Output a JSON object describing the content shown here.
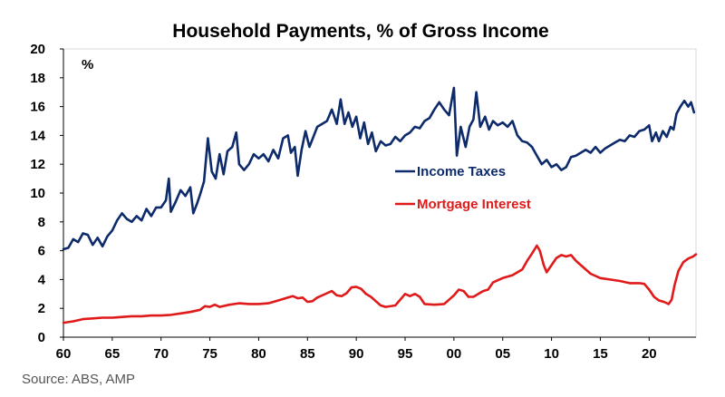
{
  "chart_data": {
    "type": "line",
    "title": "Household Payments, % of Gross Income",
    "unit_label": "%",
    "xlabel": "",
    "ylabel": "",
    "xlim": [
      1960,
      2024.8
    ],
    "ylim": [
      0,
      20
    ],
    "y_ticks": [
      0,
      2,
      4,
      6,
      8,
      10,
      12,
      14,
      16,
      18,
      20
    ],
    "x_ticks": [
      {
        "value": 1960,
        "label": "60"
      },
      {
        "value": 1965,
        "label": "65"
      },
      {
        "value": 1970,
        "label": "70"
      },
      {
        "value": 1975,
        "label": "75"
      },
      {
        "value": 1980,
        "label": "80"
      },
      {
        "value": 1985,
        "label": "85"
      },
      {
        "value": 1990,
        "label": "90"
      },
      {
        "value": 1995,
        "label": "95"
      },
      {
        "value": 2000,
        "label": "00"
      },
      {
        "value": 2005,
        "label": "05"
      },
      {
        "value": 2010,
        "label": "10"
      },
      {
        "value": 2015,
        "label": "15"
      },
      {
        "value": 2020,
        "label": "20"
      }
    ],
    "grid": false,
    "legend_position": "center-right",
    "series": [
      {
        "name": "Income Taxes",
        "color": "#0d2a6b",
        "points": [
          [
            1960.0,
            6.1
          ],
          [
            1960.5,
            6.2
          ],
          [
            1961.0,
            6.8
          ],
          [
            1961.5,
            6.6
          ],
          [
            1962.0,
            7.2
          ],
          [
            1962.5,
            7.1
          ],
          [
            1963.0,
            6.4
          ],
          [
            1963.5,
            6.9
          ],
          [
            1964.0,
            6.3
          ],
          [
            1964.5,
            7.0
          ],
          [
            1965.0,
            7.4
          ],
          [
            1965.5,
            8.1
          ],
          [
            1966.0,
            8.6
          ],
          [
            1966.5,
            8.2
          ],
          [
            1967.0,
            8.0
          ],
          [
            1967.5,
            8.4
          ],
          [
            1968.0,
            8.1
          ],
          [
            1968.5,
            8.9
          ],
          [
            1969.0,
            8.4
          ],
          [
            1969.5,
            9.0
          ],
          [
            1970.0,
            9.0
          ],
          [
            1970.5,
            9.5
          ],
          [
            1970.8,
            11.0
          ],
          [
            1971.0,
            8.7
          ],
          [
            1971.5,
            9.4
          ],
          [
            1972.0,
            10.2
          ],
          [
            1972.5,
            9.8
          ],
          [
            1973.0,
            10.4
          ],
          [
            1973.3,
            8.6
          ],
          [
            1973.7,
            9.3
          ],
          [
            1974.0,
            9.9
          ],
          [
            1974.4,
            10.8
          ],
          [
            1974.8,
            13.8
          ],
          [
            1975.2,
            11.5
          ],
          [
            1975.6,
            11.0
          ],
          [
            1976.0,
            12.7
          ],
          [
            1976.4,
            11.3
          ],
          [
            1976.8,
            12.9
          ],
          [
            1977.3,
            13.2
          ],
          [
            1977.7,
            14.2
          ],
          [
            1978.0,
            12.0
          ],
          [
            1978.5,
            11.6
          ],
          [
            1979.0,
            12.0
          ],
          [
            1979.5,
            12.7
          ],
          [
            1980.0,
            12.4
          ],
          [
            1980.5,
            12.7
          ],
          [
            1981.0,
            12.2
          ],
          [
            1981.5,
            13.0
          ],
          [
            1982.0,
            12.4
          ],
          [
            1982.5,
            13.8
          ],
          [
            1983.0,
            14.0
          ],
          [
            1983.3,
            12.8
          ],
          [
            1983.7,
            13.2
          ],
          [
            1984.0,
            11.2
          ],
          [
            1984.4,
            13.0
          ],
          [
            1984.8,
            14.3
          ],
          [
            1985.2,
            13.2
          ],
          [
            1985.6,
            13.9
          ],
          [
            1986.0,
            14.6
          ],
          [
            1986.5,
            14.8
          ],
          [
            1987.0,
            15.0
          ],
          [
            1987.5,
            15.8
          ],
          [
            1988.0,
            14.8
          ],
          [
            1988.4,
            16.5
          ],
          [
            1988.8,
            14.8
          ],
          [
            1989.2,
            15.6
          ],
          [
            1989.6,
            14.6
          ],
          [
            1990.0,
            15.3
          ],
          [
            1990.4,
            13.8
          ],
          [
            1990.8,
            14.9
          ],
          [
            1991.2,
            13.4
          ],
          [
            1991.6,
            14.2
          ],
          [
            1992.0,
            12.9
          ],
          [
            1992.5,
            13.6
          ],
          [
            1993.0,
            13.3
          ],
          [
            1993.5,
            13.4
          ],
          [
            1994.0,
            13.9
          ],
          [
            1994.5,
            13.6
          ],
          [
            1995.0,
            14.0
          ],
          [
            1995.5,
            14.2
          ],
          [
            1996.0,
            14.6
          ],
          [
            1996.5,
            14.5
          ],
          [
            1997.0,
            15.0
          ],
          [
            1997.5,
            15.2
          ],
          [
            1998.0,
            15.8
          ],
          [
            1998.5,
            16.3
          ],
          [
            1999.0,
            15.8
          ],
          [
            1999.5,
            15.4
          ],
          [
            2000.0,
            17.3
          ],
          [
            2000.3,
            12.6
          ],
          [
            2000.7,
            14.6
          ],
          [
            2001.2,
            13.2
          ],
          [
            2001.6,
            14.6
          ],
          [
            2002.0,
            15.1
          ],
          [
            2002.3,
            17.0
          ],
          [
            2002.7,
            14.6
          ],
          [
            2003.2,
            15.3
          ],
          [
            2003.6,
            14.4
          ],
          [
            2004.0,
            15.0
          ],
          [
            2004.5,
            14.7
          ],
          [
            2005.0,
            14.9
          ],
          [
            2005.5,
            14.6
          ],
          [
            2006.0,
            15.0
          ],
          [
            2006.5,
            14.0
          ],
          [
            2007.0,
            13.6
          ],
          [
            2007.5,
            13.5
          ],
          [
            2008.0,
            13.2
          ],
          [
            2008.5,
            12.6
          ],
          [
            2009.0,
            12.0
          ],
          [
            2009.5,
            12.3
          ],
          [
            2010.0,
            11.8
          ],
          [
            2010.5,
            12.0
          ],
          [
            2011.0,
            11.6
          ],
          [
            2011.5,
            11.8
          ],
          [
            2012.0,
            12.5
          ],
          [
            2012.5,
            12.6
          ],
          [
            2013.0,
            12.8
          ],
          [
            2013.5,
            13.0
          ],
          [
            2014.0,
            12.8
          ],
          [
            2014.5,
            13.2
          ],
          [
            2015.0,
            12.8
          ],
          [
            2015.5,
            13.1
          ],
          [
            2016.0,
            13.3
          ],
          [
            2016.5,
            13.5
          ],
          [
            2017.0,
            13.7
          ],
          [
            2017.5,
            13.6
          ],
          [
            2018.0,
            14.0
          ],
          [
            2018.5,
            13.9
          ],
          [
            2019.0,
            14.3
          ],
          [
            2019.5,
            14.4
          ],
          [
            2020.0,
            14.7
          ],
          [
            2020.3,
            13.6
          ],
          [
            2020.7,
            14.2
          ],
          [
            2021.0,
            13.6
          ],
          [
            2021.4,
            14.3
          ],
          [
            2021.8,
            13.9
          ],
          [
            2022.2,
            14.6
          ],
          [
            2022.5,
            14.4
          ],
          [
            2022.8,
            15.5
          ],
          [
            2023.2,
            16.0
          ],
          [
            2023.6,
            16.4
          ],
          [
            2024.0,
            16.0
          ],
          [
            2024.3,
            16.3
          ],
          [
            2024.6,
            15.6
          ]
        ]
      },
      {
        "name": "Mortgage Interest",
        "color": "#e01a1a",
        "points": [
          [
            1960.0,
            1.0
          ],
          [
            1961.0,
            1.1
          ],
          [
            1962.0,
            1.25
          ],
          [
            1963.0,
            1.3
          ],
          [
            1964.0,
            1.35
          ],
          [
            1965.0,
            1.35
          ],
          [
            1966.0,
            1.4
          ],
          [
            1967.0,
            1.45
          ],
          [
            1968.0,
            1.45
          ],
          [
            1969.0,
            1.5
          ],
          [
            1970.0,
            1.5
          ],
          [
            1971.0,
            1.55
          ],
          [
            1972.0,
            1.65
          ],
          [
            1973.0,
            1.75
          ],
          [
            1974.0,
            1.9
          ],
          [
            1974.5,
            2.15
          ],
          [
            1975.0,
            2.1
          ],
          [
            1975.5,
            2.25
          ],
          [
            1976.0,
            2.1
          ],
          [
            1977.0,
            2.25
          ],
          [
            1978.0,
            2.35
          ],
          [
            1979.0,
            2.3
          ],
          [
            1980.0,
            2.3
          ],
          [
            1981.0,
            2.35
          ],
          [
            1982.0,
            2.55
          ],
          [
            1983.0,
            2.75
          ],
          [
            1983.5,
            2.85
          ],
          [
            1984.0,
            2.7
          ],
          [
            1984.5,
            2.75
          ],
          [
            1985.0,
            2.45
          ],
          [
            1985.5,
            2.5
          ],
          [
            1986.0,
            2.75
          ],
          [
            1987.0,
            3.05
          ],
          [
            1987.5,
            3.2
          ],
          [
            1988.0,
            2.9
          ],
          [
            1988.5,
            2.85
          ],
          [
            1989.0,
            3.05
          ],
          [
            1989.5,
            3.45
          ],
          [
            1990.0,
            3.5
          ],
          [
            1990.5,
            3.35
          ],
          [
            1991.0,
            3.0
          ],
          [
            1991.5,
            2.8
          ],
          [
            1992.0,
            2.5
          ],
          [
            1992.5,
            2.2
          ],
          [
            1993.0,
            2.1
          ],
          [
            1994.0,
            2.2
          ],
          [
            1994.5,
            2.6
          ],
          [
            1995.0,
            3.0
          ],
          [
            1995.5,
            2.85
          ],
          [
            1996.0,
            3.0
          ],
          [
            1996.5,
            2.8
          ],
          [
            1997.0,
            2.3
          ],
          [
            1998.0,
            2.25
          ],
          [
            1999.0,
            2.3
          ],
          [
            1999.5,
            2.6
          ],
          [
            2000.0,
            2.9
          ],
          [
            2000.5,
            3.3
          ],
          [
            2001.0,
            3.2
          ],
          [
            2001.5,
            2.8
          ],
          [
            2002.0,
            2.8
          ],
          [
            2002.5,
            3.0
          ],
          [
            2003.0,
            3.2
          ],
          [
            2003.5,
            3.3
          ],
          [
            2004.0,
            3.8
          ],
          [
            2005.0,
            4.1
          ],
          [
            2006.0,
            4.3
          ],
          [
            2007.0,
            4.7
          ],
          [
            2007.5,
            5.3
          ],
          [
            2008.0,
            5.8
          ],
          [
            2008.5,
            6.35
          ],
          [
            2008.8,
            6.0
          ],
          [
            2009.2,
            5.0
          ],
          [
            2009.5,
            4.5
          ],
          [
            2010.0,
            5.0
          ],
          [
            2010.5,
            5.5
          ],
          [
            2011.0,
            5.7
          ],
          [
            2011.5,
            5.6
          ],
          [
            2012.0,
            5.7
          ],
          [
            2012.5,
            5.3
          ],
          [
            2013.0,
            5.0
          ],
          [
            2014.0,
            4.4
          ],
          [
            2015.0,
            4.1
          ],
          [
            2016.0,
            4.0
          ],
          [
            2017.0,
            3.9
          ],
          [
            2018.0,
            3.75
          ],
          [
            2019.0,
            3.75
          ],
          [
            2019.5,
            3.7
          ],
          [
            2020.0,
            3.3
          ],
          [
            2020.5,
            2.8
          ],
          [
            2021.0,
            2.55
          ],
          [
            2021.5,
            2.45
          ],
          [
            2022.0,
            2.3
          ],
          [
            2022.3,
            2.6
          ],
          [
            2022.6,
            3.6
          ],
          [
            2023.0,
            4.6
          ],
          [
            2023.5,
            5.2
          ],
          [
            2024.0,
            5.45
          ],
          [
            2024.5,
            5.6
          ],
          [
            2024.8,
            5.75
          ]
        ]
      }
    ]
  },
  "source": "Source: ABS, AMP"
}
